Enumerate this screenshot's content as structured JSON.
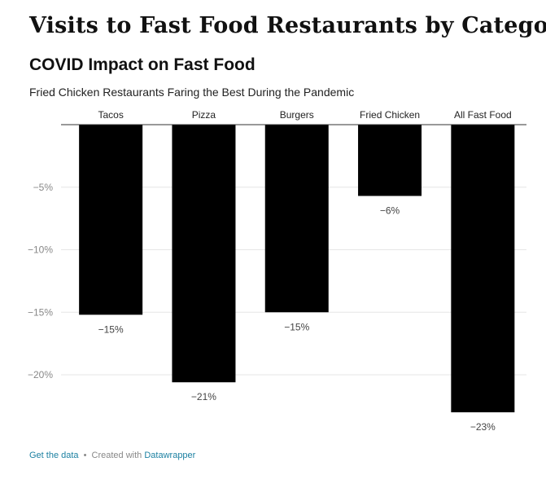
{
  "page": {
    "title": "Visits to Fast Food Restaurants by Category"
  },
  "chart_data": {
    "type": "bar",
    "title": "COVID Impact on Fast Food",
    "subtitle": "Fried Chicken Restaurants Faring the Best During the Pandemic",
    "categories": [
      "Tacos",
      "Pizza",
      "Burgers",
      "Fried Chicken",
      "All Fast Food"
    ],
    "values": [
      -15.2,
      -20.6,
      -15.0,
      -5.7,
      -23.0
    ],
    "data_labels": [
      "−15%",
      "−21%",
      "−15%",
      "−6%",
      "−23%"
    ],
    "y_ticks": [
      -5,
      -10,
      -15,
      -20
    ],
    "y_tick_labels": [
      "−5%",
      "−10%",
      "−15%",
      "−20%"
    ],
    "ylim": [
      -23,
      0
    ],
    "grid": true,
    "category_labels_position": "top",
    "bar_color": "#000000",
    "xlabel": "",
    "ylabel": ""
  },
  "footer": {
    "get_data_link": "Get the data",
    "separator": "•",
    "created_with": "Created with",
    "tool_link": "Datawrapper"
  }
}
